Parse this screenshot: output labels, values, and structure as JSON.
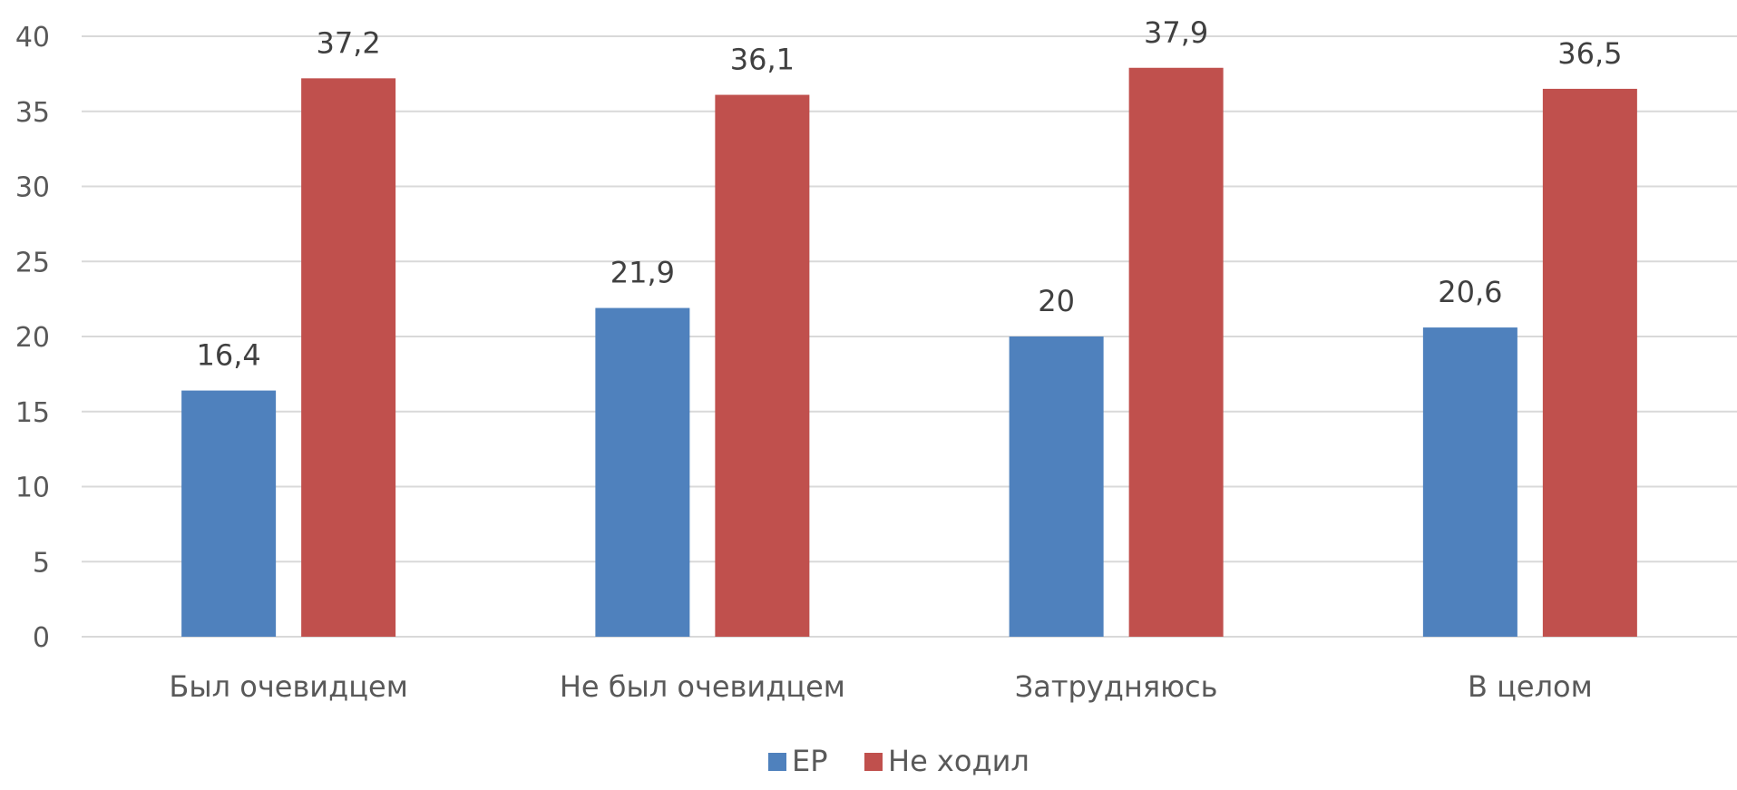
{
  "chart_data": {
    "type": "bar",
    "title": "",
    "xlabel": "",
    "ylabel": "",
    "categories": [
      "Был очевидцем",
      "Не был очевидцем",
      "Затрудняюсь",
      "В целом"
    ],
    "series": [
      {
        "name": "ЕР",
        "color": "#4f81bd",
        "values": [
          16.4,
          21.9,
          20,
          20.6
        ],
        "labels": [
          "16,4",
          "21,9",
          "20",
          "20,6"
        ]
      },
      {
        "name": "Не ходил",
        "color": "#c0504d",
        "values": [
          37.2,
          36.1,
          37.9,
          36.5
        ],
        "labels": [
          "37,2",
          "36,1",
          "37,9",
          "36,5"
        ]
      }
    ],
    "ylim": [
      0,
      40
    ],
    "yticks": [
      0,
      5,
      10,
      15,
      20,
      25,
      30,
      35,
      40
    ],
    "grid": true,
    "legend_position": "bottom"
  }
}
